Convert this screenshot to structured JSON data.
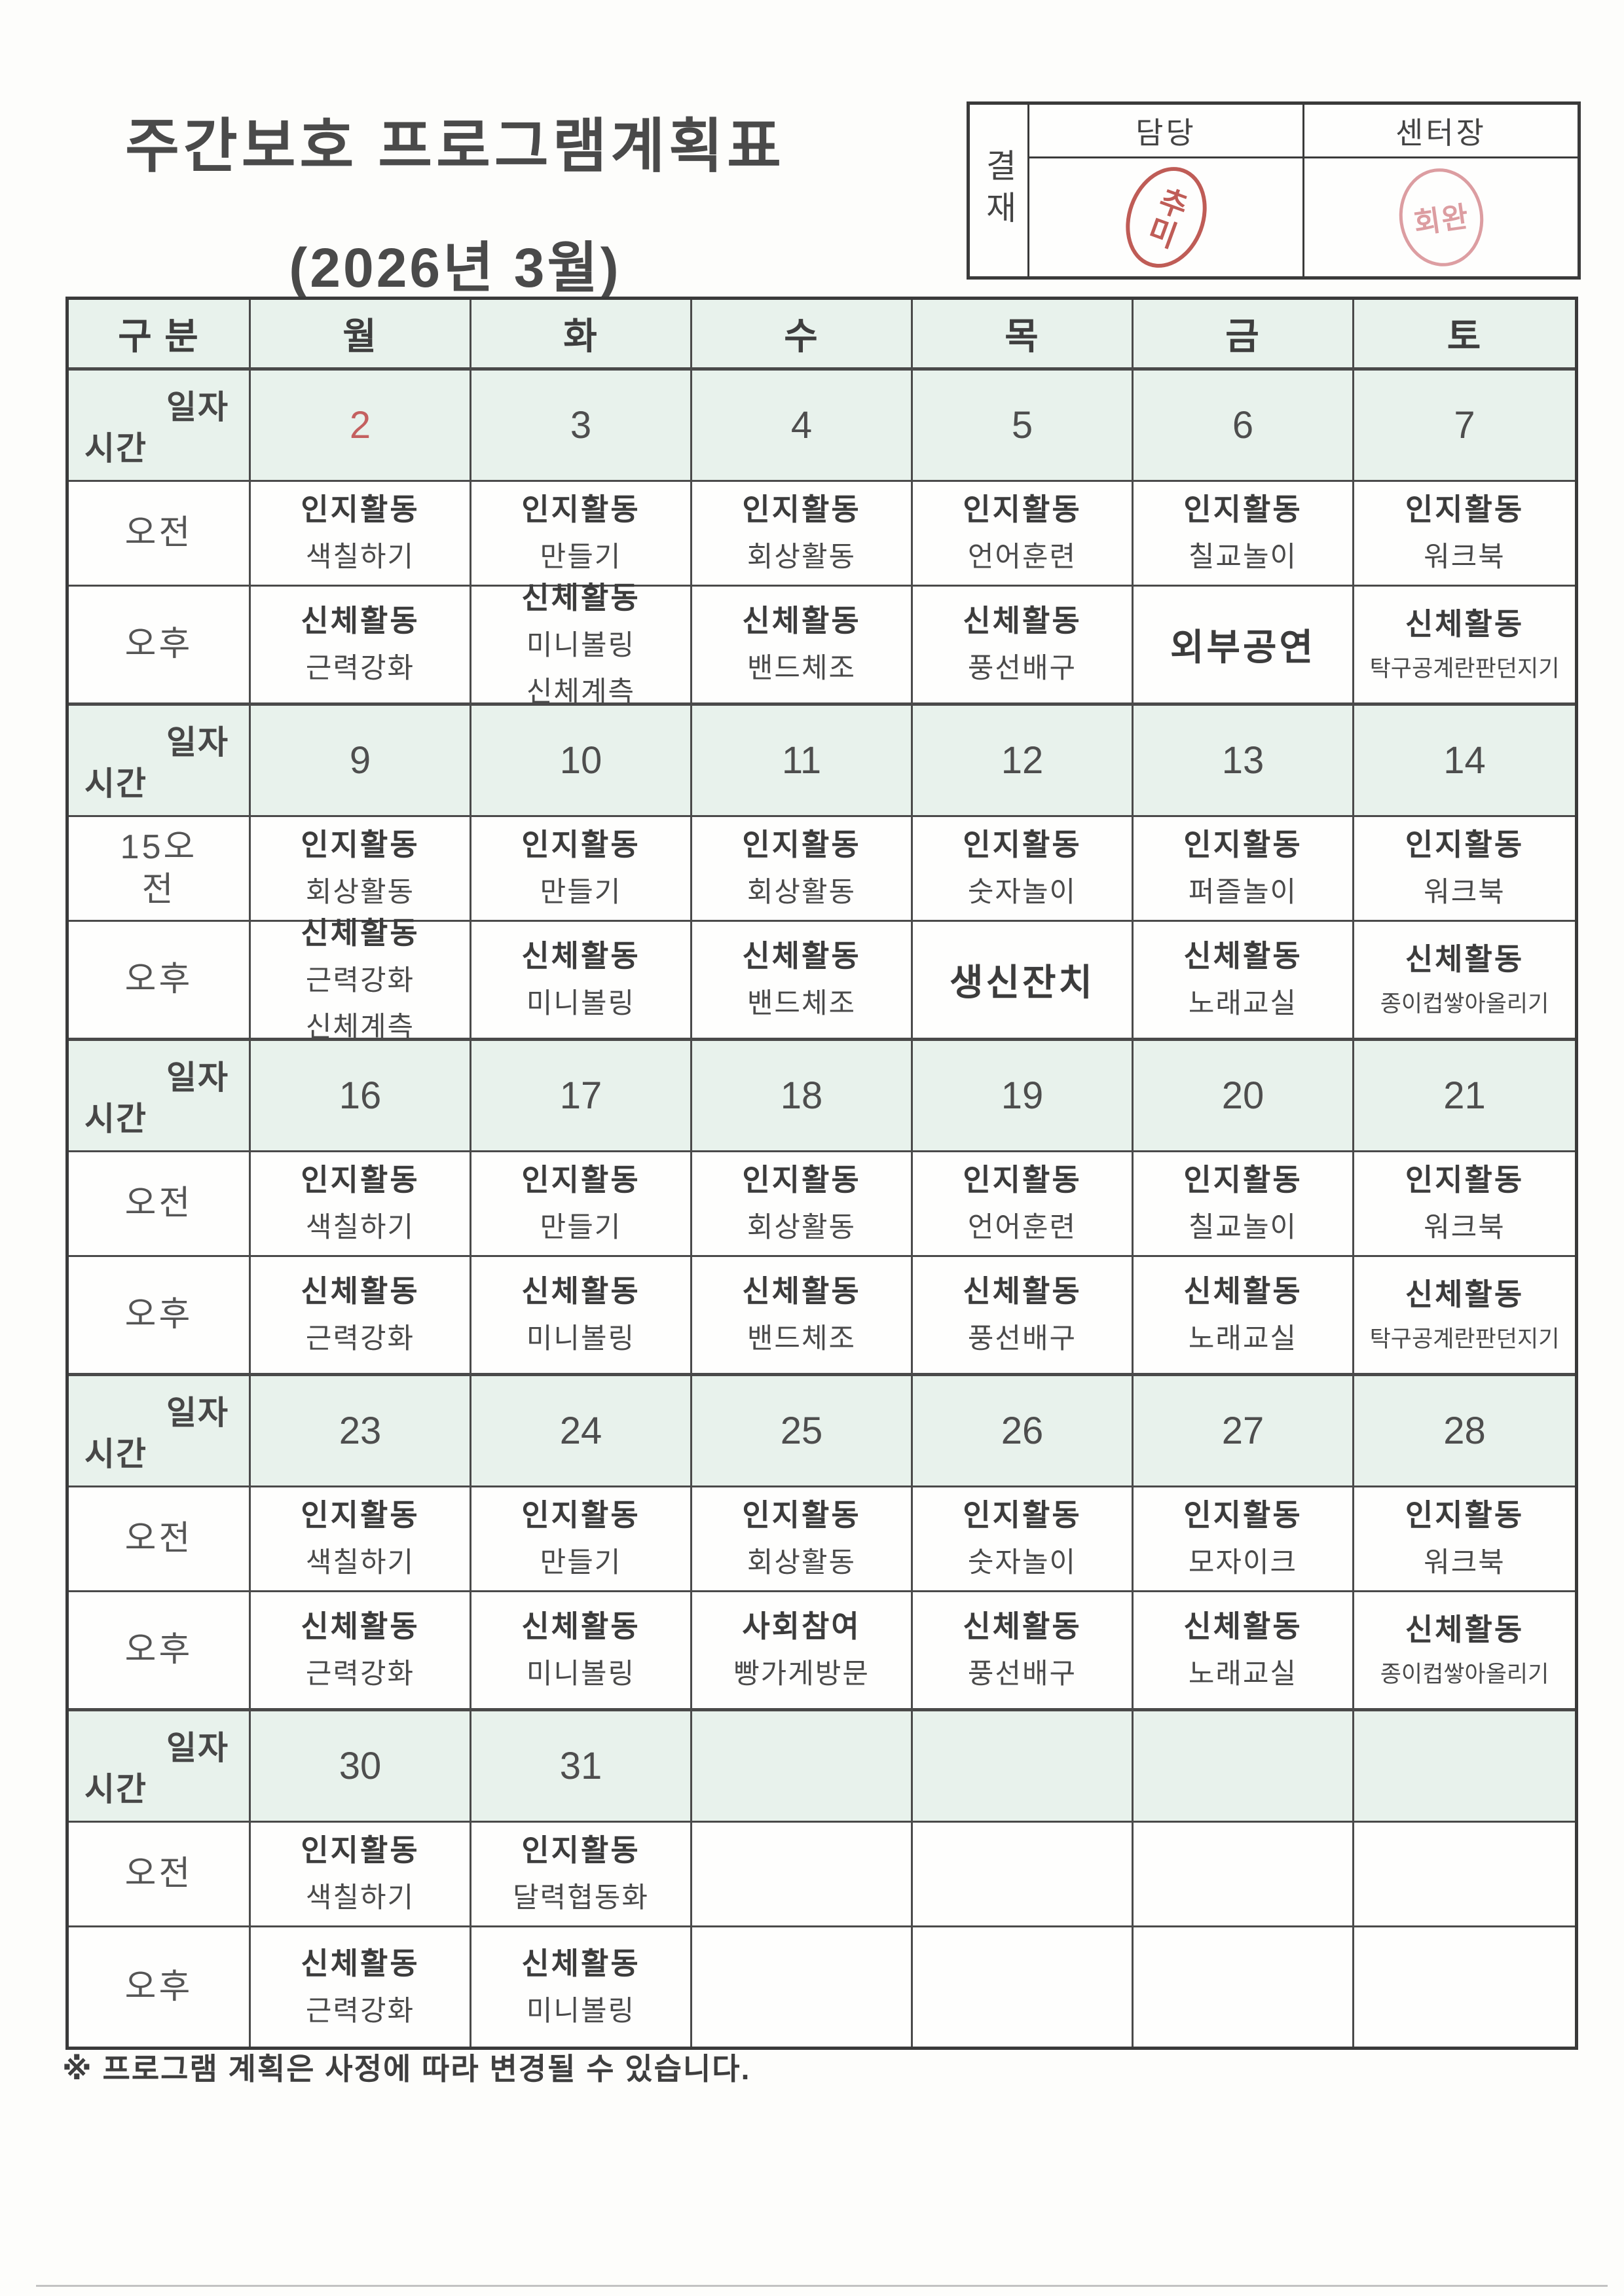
{
  "title": "주간보호 프로그램계획표",
  "subtitle": "(2026년 3월)",
  "approval": {
    "label": "결재",
    "columns": [
      "담당",
      "센터장"
    ],
    "stamps": [
      "추미",
      "회완"
    ]
  },
  "table": {
    "corner_header": "구 분",
    "corner": {
      "top": "일자",
      "bottom": "시간"
    },
    "days": [
      "월",
      "화",
      "수",
      "목",
      "금",
      "토"
    ],
    "weeks": [
      {
        "dates": [
          {
            "value": "2",
            "red": true
          },
          {
            "value": "3"
          },
          {
            "value": "4"
          },
          {
            "value": "5"
          },
          {
            "value": "6"
          },
          {
            "value": "7"
          }
        ],
        "rows": [
          {
            "label_lines": [
              "오전"
            ],
            "cells": [
              {
                "lines": [
                  "인지활동",
                  "색칠하기"
                ]
              },
              {
                "lines": [
                  "인지활동",
                  "만들기"
                ]
              },
              {
                "lines": [
                  "인지활동",
                  "회상활동"
                ]
              },
              {
                "lines": [
                  "인지활동",
                  "언어훈련"
                ]
              },
              {
                "lines": [
                  "인지활동",
                  "칠교놀이"
                ]
              },
              {
                "lines": [
                  "인지활동",
                  "워크북"
                ]
              }
            ]
          },
          {
            "label_lines": [
              "오후"
            ],
            "cells": [
              {
                "lines": [
                  "신체활동",
                  "근력강화"
                ]
              },
              {
                "lines": [
                  "신체활동",
                  "미니볼링",
                  "신체계측"
                ]
              },
              {
                "lines": [
                  "신체활동",
                  "밴드체조"
                ]
              },
              {
                "lines": [
                  "신체활동",
                  "풍선배구"
                ]
              },
              {
                "lines": [
                  "외부공연"
                ]
              },
              {
                "lines": [
                  "신체활동",
                  "탁구공계란판던지기"
                ]
              }
            ]
          }
        ]
      },
      {
        "dates": [
          {
            "value": "9"
          },
          {
            "value": "10"
          },
          {
            "value": "11"
          },
          {
            "value": "12"
          },
          {
            "value": "13"
          },
          {
            "value": "14"
          }
        ],
        "rows": [
          {
            "label_lines": [
              "15오",
              "전"
            ],
            "cells": [
              {
                "lines": [
                  "인지활동",
                  "회상활동"
                ]
              },
              {
                "lines": [
                  "인지활동",
                  "만들기"
                ]
              },
              {
                "lines": [
                  "인지활동",
                  "회상활동"
                ]
              },
              {
                "lines": [
                  "인지활동",
                  "숫자놀이"
                ]
              },
              {
                "lines": [
                  "인지활동",
                  "퍼즐놀이"
                ]
              },
              {
                "lines": [
                  "인지활동",
                  "워크북"
                ]
              }
            ]
          },
          {
            "label_lines": [
              "오후"
            ],
            "cells": [
              {
                "lines": [
                  "신체활동",
                  "근력강화",
                  "신체계측"
                ]
              },
              {
                "lines": [
                  "신체활동",
                  "미니볼링"
                ]
              },
              {
                "lines": [
                  "신체활동",
                  "밴드체조"
                ]
              },
              {
                "lines": [
                  "생신잔치"
                ]
              },
              {
                "lines": [
                  "신체활동",
                  "노래교실"
                ]
              },
              {
                "lines": [
                  "신체활동",
                  "종이컵쌓아올리기"
                ]
              }
            ]
          }
        ]
      },
      {
        "dates": [
          {
            "value": "16"
          },
          {
            "value": "17"
          },
          {
            "value": "18"
          },
          {
            "value": "19"
          },
          {
            "value": "20"
          },
          {
            "value": "21"
          }
        ],
        "rows": [
          {
            "label_lines": [
              "오전"
            ],
            "cells": [
              {
                "lines": [
                  "인지활동",
                  "색칠하기"
                ]
              },
              {
                "lines": [
                  "인지활동",
                  "만들기"
                ]
              },
              {
                "lines": [
                  "인지활동",
                  "회상활동"
                ]
              },
              {
                "lines": [
                  "인지활동",
                  "언어훈련"
                ]
              },
              {
                "lines": [
                  "인지활동",
                  "칠교놀이"
                ]
              },
              {
                "lines": [
                  "인지활동",
                  "워크북"
                ]
              }
            ]
          },
          {
            "label_lines": [
              "오후"
            ],
            "cells": [
              {
                "lines": [
                  "신체활동",
                  "근력강화"
                ]
              },
              {
                "lines": [
                  "신체활동",
                  "미니볼링"
                ]
              },
              {
                "lines": [
                  "신체활동",
                  "밴드체조"
                ]
              },
              {
                "lines": [
                  "신체활동",
                  "풍선배구"
                ]
              },
              {
                "lines": [
                  "신체활동",
                  "노래교실"
                ]
              },
              {
                "lines": [
                  "신체활동",
                  "탁구공계란판던지기"
                ]
              }
            ]
          }
        ]
      },
      {
        "dates": [
          {
            "value": "23"
          },
          {
            "value": "24"
          },
          {
            "value": "25"
          },
          {
            "value": "26"
          },
          {
            "value": "27"
          },
          {
            "value": "28"
          }
        ],
        "rows": [
          {
            "label_lines": [
              "오전"
            ],
            "cells": [
              {
                "lines": [
                  "인지활동",
                  "색칠하기"
                ]
              },
              {
                "lines": [
                  "인지활동",
                  "만들기"
                ]
              },
              {
                "lines": [
                  "인지활동",
                  "회상활동"
                ]
              },
              {
                "lines": [
                  "인지활동",
                  "숫자놀이"
                ]
              },
              {
                "lines": [
                  "인지활동",
                  "모자이크"
                ]
              },
              {
                "lines": [
                  "인지활동",
                  "워크북"
                ]
              }
            ]
          },
          {
            "label_lines": [
              "오후"
            ],
            "cells": [
              {
                "lines": [
                  "신체활동",
                  "근력강화"
                ]
              },
              {
                "lines": [
                  "신체활동",
                  "미니볼링"
                ]
              },
              {
                "lines": [
                  "사회참여",
                  "빵가게방문"
                ]
              },
              {
                "lines": [
                  "신체활동",
                  "풍선배구"
                ]
              },
              {
                "lines": [
                  "신체활동",
                  "노래교실"
                ]
              },
              {
                "lines": [
                  "신체활동",
                  "종이컵쌓아올리기"
                ]
              }
            ]
          }
        ]
      },
      {
        "dates": [
          {
            "value": "30"
          },
          {
            "value": "31"
          },
          {
            "value": ""
          },
          {
            "value": ""
          },
          {
            "value": ""
          },
          {
            "value": ""
          }
        ],
        "rows": [
          {
            "label_lines": [
              "오전"
            ],
            "cells": [
              {
                "lines": [
                  "인지활동",
                  "색칠하기"
                ]
              },
              {
                "lines": [
                  "인지활동",
                  "달력협동화"
                ]
              },
              {
                "lines": []
              },
              {
                "lines": []
              },
              {
                "lines": []
              },
              {
                "lines": []
              }
            ]
          },
          {
            "label_lines": [
              "오후"
            ],
            "cells": [
              {
                "lines": [
                  "신체활동",
                  "근력강화"
                ]
              },
              {
                "lines": [
                  "신체활동",
                  "미니볼링"
                ]
              },
              {
                "lines": []
              },
              {
                "lines": []
              },
              {
                "lines": []
              },
              {
                "lines": []
              }
            ]
          }
        ]
      }
    ]
  },
  "footer_note": "※ 프로그램 계획은 사정에 따라 변경될 수 있습니다."
}
